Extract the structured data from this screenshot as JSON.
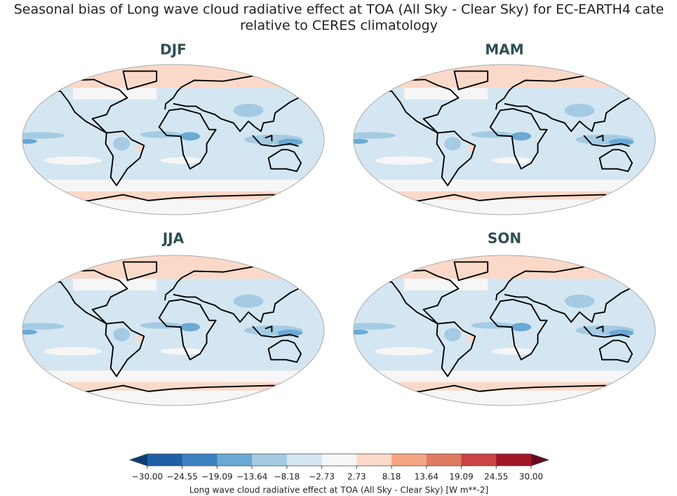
{
  "header": {
    "title_lines": [
      "Seasonal bias of Long wave cloud radiative effect at TOA (All Sky - Clear Sky) for EC-EARTH4 cate",
      "relative to CERES climatology"
    ]
  },
  "panels": [
    {
      "title": "DJF"
    },
    {
      "title": "MAM"
    },
    {
      "title": "JJA"
    },
    {
      "title": "SON"
    }
  ],
  "colorbar": {
    "label": "Long wave cloud radiative effect at TOA (All Sky - Clear Sky) [W m**-2]",
    "ticks": [
      {
        "value": -30,
        "label": "−30.00"
      },
      {
        "value": -24.55,
        "label": "−24.55"
      },
      {
        "value": -19.09,
        "label": "−19.09"
      },
      {
        "value": -13.64,
        "label": "−13.64"
      },
      {
        "value": -8.18,
        "label": "−8.18"
      },
      {
        "value": -2.73,
        "label": "−2.73"
      },
      {
        "value": 2.73,
        "label": "2.73"
      },
      {
        "value": 8.18,
        "label": "8.18"
      },
      {
        "value": 13.64,
        "label": "13.64"
      },
      {
        "value": 19.09,
        "label": "19.09"
      },
      {
        "value": 24.55,
        "label": "24.55"
      },
      {
        "value": 30,
        "label": "30.00"
      }
    ],
    "colors": [
      "#1f5fa6",
      "#3a82c0",
      "#6aa9d3",
      "#a4cbe3",
      "#d4e6f1",
      "#f6f6f6",
      "#fbd9c9",
      "#f4a582",
      "#e07b63",
      "#c94442",
      "#a01828"
    ],
    "extend_colors": [
      "#0c3c78",
      "#670a1f"
    ]
  }
}
